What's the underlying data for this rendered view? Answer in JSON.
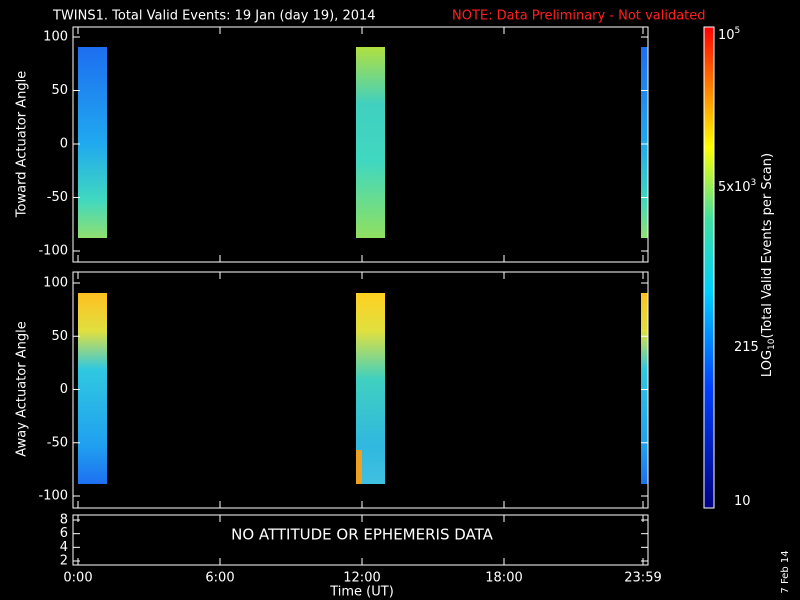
{
  "header": {
    "title": "TWINS1. Total Valid Events: 19 Jan (day  19), 2014",
    "note": "NOTE: Data Preliminary - Not validated"
  },
  "panels": [
    {
      "ylabel": "Toward Actuator Angle",
      "yticks": [
        "100",
        "50",
        "0",
        "-50",
        "-100"
      ]
    },
    {
      "ylabel": "Away Actuator Angle",
      "yticks": [
        "100",
        "50",
        "0",
        "-50",
        "-100"
      ]
    },
    {
      "message": "NO ATTITUDE OR EPHEMERIS DATA",
      "yticks": [
        "8",
        "6",
        "4",
        "2"
      ]
    }
  ],
  "xaxis": {
    "label": "Time (UT)",
    "ticks": [
      "0:00",
      "6:00",
      "12:00",
      "18:00",
      "23:59"
    ]
  },
  "colorbar": {
    "label_prefix": "LOG",
    "label_sub": "10",
    "label_rest": "(Total Valid  Events per Scan)",
    "ticks": [
      {
        "base": "10",
        "exp": "5"
      },
      {
        "base": "5x10",
        "exp": "3"
      },
      {
        "base": "215",
        "exp": ""
      },
      {
        "base": "10",
        "exp": ""
      }
    ]
  },
  "footer": {
    "date": "7 Feb 14"
  }
}
